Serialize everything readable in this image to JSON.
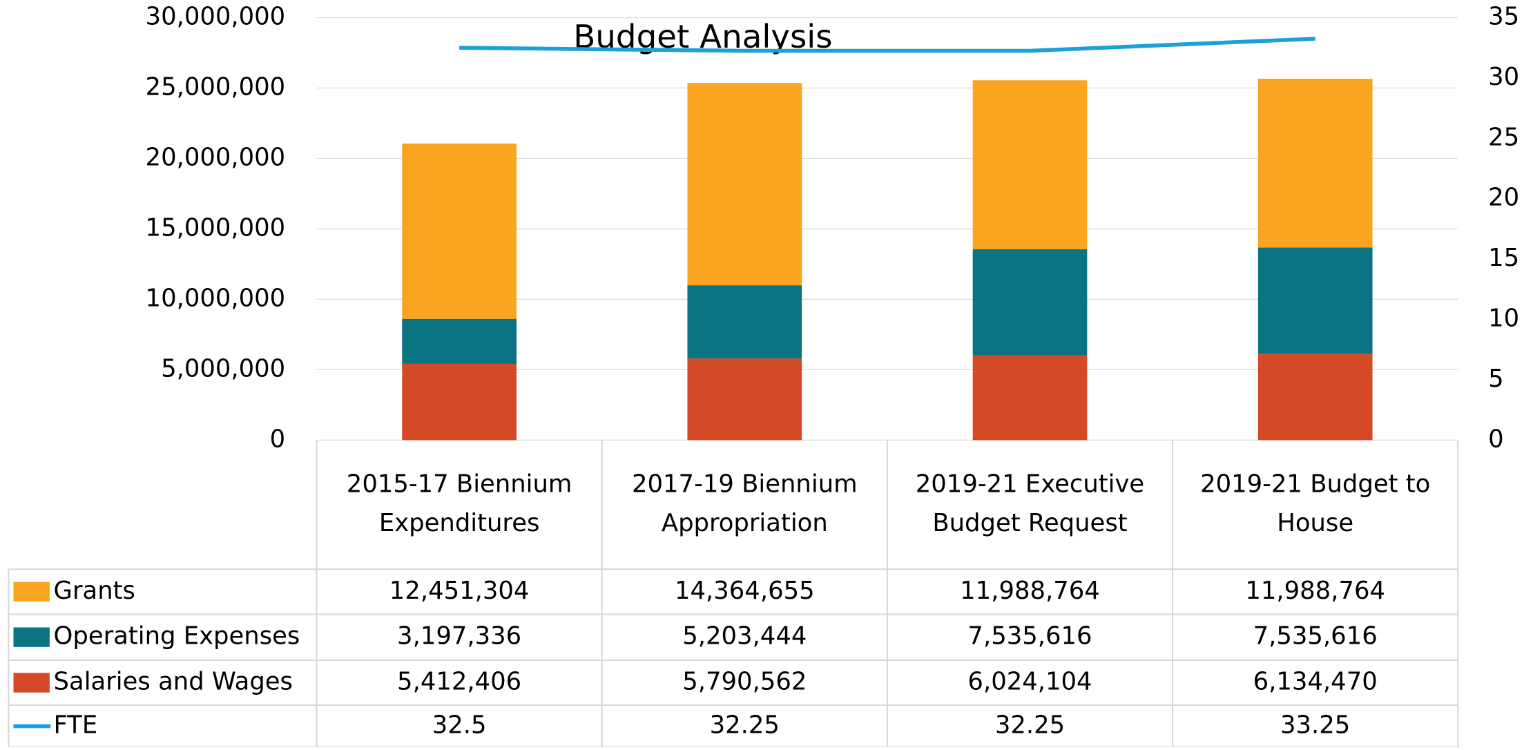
{
  "chart_data": {
    "type": "bar",
    "stacked": true,
    "title": "Budget Analysis",
    "categories": [
      "2015-17 Biennium Expenditures",
      "2017-19 Biennium Appropriation",
      "2019-21 Executive Budget Request",
      "2019-21  Budget to House"
    ],
    "series": [
      {
        "name": "Grants",
        "color": "#f9a51f",
        "values": [
          12451304,
          14364655,
          11988764,
          11988764
        ],
        "value_labels": [
          "12,451,304",
          "14,364,655",
          "11,988,764",
          "11,988,764"
        ]
      },
      {
        "name": "Operating Expenses",
        "color": "#0b7482",
        "values": [
          3197336,
          5203444,
          7535616,
          7535616
        ],
        "value_labels": [
          "3,197,336",
          "5,203,444",
          "7,535,616",
          "7,535,616"
        ]
      },
      {
        "name": "Salaries and Wages",
        "color": "#d44a27",
        "values": [
          5412406,
          5790562,
          6024104,
          6134470
        ],
        "value_labels": [
          "5,412,406",
          "5,790,562",
          "6,024,104",
          "6,134,470"
        ]
      },
      {
        "name": "FTE",
        "type": "line",
        "axis": "y2",
        "color": "#1ba1d8",
        "values": [
          32.5,
          32.25,
          32.25,
          33.25
        ]
      }
    ],
    "ylim": [
      0,
      30000000
    ],
    "yticks": [
      0,
      {
        "value": 5000000,
        "label": "5,000,000"
      },
      {
        "value": 10000000,
        "label": "10,000,000"
      },
      {
        "value": 15000000,
        "label": "15,000,000"
      },
      {
        "value": 20000000,
        "label": "20,000,000"
      },
      {
        "value": 25000000,
        "label": "25,000,000"
      },
      {
        "value": 30000000,
        "label": "30,000,000"
      }
    ],
    "y2lim": [
      0,
      35
    ],
    "y2ticks": [
      0,
      5,
      10,
      15,
      20,
      25,
      30,
      35
    ],
    "grid": true,
    "data_table": true
  }
}
